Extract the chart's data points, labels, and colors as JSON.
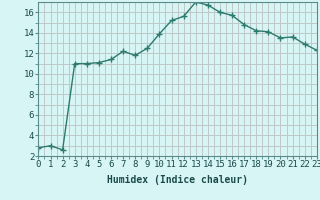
{
  "x": [
    0,
    1,
    2,
    3,
    4,
    5,
    6,
    7,
    8,
    9,
    10,
    11,
    12,
    13,
    14,
    15,
    16,
    17,
    18,
    19,
    20,
    21,
    22,
    23
  ],
  "y": [
    2.8,
    3.0,
    2.6,
    11.0,
    11.0,
    11.1,
    11.4,
    12.2,
    11.8,
    12.5,
    13.9,
    15.2,
    15.6,
    17.0,
    16.7,
    16.0,
    15.7,
    14.8,
    14.2,
    14.1,
    13.5,
    13.6,
    12.9,
    12.3
  ],
  "line_color": "#2d7a6e",
  "bg_color": "#d8f5f5",
  "grid_color": "#c0c8c8",
  "xlabel": "Humidex (Indice chaleur)",
  "xlim": [
    0,
    23
  ],
  "ylim": [
    2,
    17
  ],
  "yticks": [
    2,
    4,
    6,
    8,
    10,
    12,
    14,
    16
  ],
  "xticks": [
    0,
    1,
    2,
    3,
    4,
    5,
    6,
    7,
    8,
    9,
    10,
    11,
    12,
    13,
    14,
    15,
    16,
    17,
    18,
    19,
    20,
    21,
    22,
    23
  ],
  "marker": "+",
  "markersize": 4,
  "linewidth": 1.0,
  "font_color": "#1a4a4a",
  "xlabel_fontsize": 7,
  "tick_fontsize": 6.5,
  "spine_color": "#5a8a8a"
}
